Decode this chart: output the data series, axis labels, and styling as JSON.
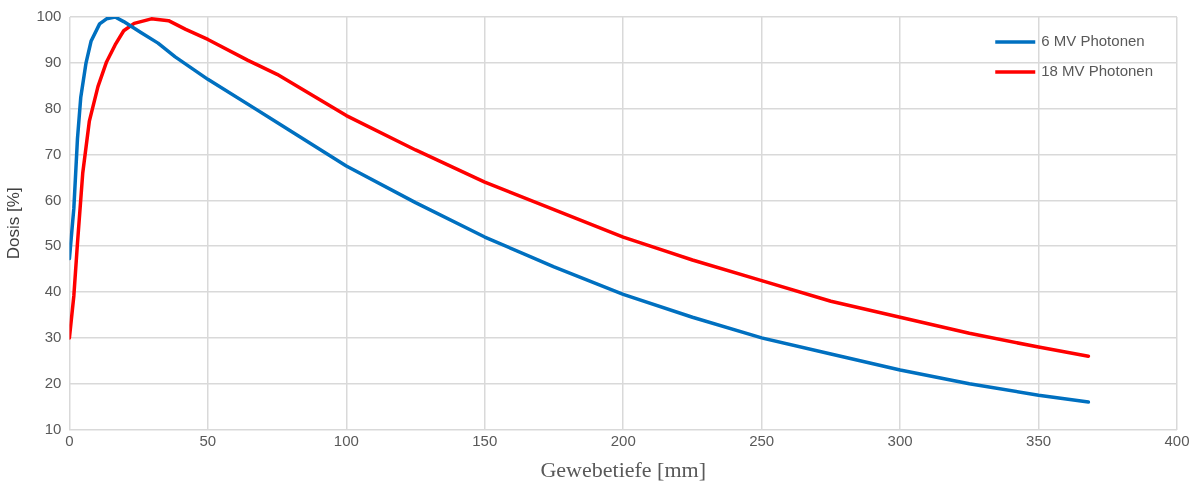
{
  "chart_data": {
    "type": "line",
    "xlabel": "Gewebetiefe [mm]",
    "ylabel": "Dosis [%]",
    "xlim": [
      0,
      400
    ],
    "xticks": [
      0,
      50,
      100,
      150,
      200,
      250,
      300,
      350,
      400
    ],
    "ylim": [
      10,
      100
    ],
    "yticks": [
      10,
      20,
      30,
      40,
      50,
      60,
      70,
      80,
      90,
      100
    ],
    "grid": true,
    "legend": "top right",
    "marker": "none",
    "line_style": "solid",
    "series": [
      {
        "name": "6 MV Photonen",
        "color": "#0070c0",
        "x": [
          0,
          1.6,
          2.9,
          4.1,
          6,
          7.8,
          10.9,
          13.4,
          16.5,
          19.6,
          25.8,
          32,
          38.2,
          50,
          75,
          100,
          125,
          150,
          175,
          200,
          225,
          250,
          275,
          300,
          325,
          350,
          368
        ],
        "values": [
          47.3,
          58.3,
          73.4,
          82.5,
          90,
          94.7,
          98.5,
          99.6,
          100,
          99,
          96.6,
          94.3,
          91.3,
          86.4,
          77,
          67.5,
          59.5,
          52,
          45.5,
          39.5,
          34.5,
          30,
          26.5,
          23,
          20,
          17.5,
          16
        ]
      },
      {
        "name": "18 MV Photonen",
        "color": "#ff0000",
        "x": [
          0,
          1.6,
          2.9,
          4.8,
          7.2,
          10.3,
          13.4,
          16.5,
          19.6,
          23.4,
          29.6,
          35.8,
          42,
          50,
          64.3,
          75,
          100,
          125,
          150,
          175,
          200,
          225,
          250,
          275,
          300,
          325,
          350,
          368
        ],
        "values": [
          30,
          39.2,
          50.6,
          65.9,
          77.3,
          84.8,
          90.2,
          93.9,
          97,
          98.6,
          99.6,
          99.2,
          97.3,
          95.1,
          90.6,
          87.5,
          78.5,
          71,
          64,
          58,
          52,
          47,
          42.5,
          38,
          34.5,
          31,
          28,
          26
        ]
      }
    ]
  }
}
